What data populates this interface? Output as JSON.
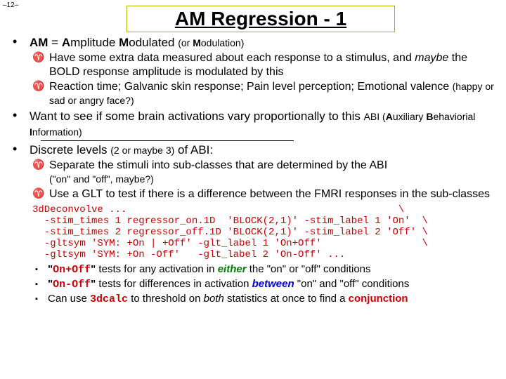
{
  "page_number": "–12–",
  "title": "AM Regression - 1",
  "b1a_pre": "AM",
  "b1a_eq": " = ",
  "b1a_A": "A",
  "b1a_mplitude": "mplitude ",
  "b1a_M": "M",
  "b1a_odulated": "odulated ",
  "b1a_or": "(or ",
  "b1a_M2": "M",
  "b1a_odulation": "odulation)",
  "b2a": "Have some extra data measured about each response to a stimulus, and ",
  "b2a_maybe": "maybe",
  "b2a_rest": " the BOLD response amplitude is modulated by this",
  "b2b": "Reaction time; Galvanic skin response; Pain level perception; Emotional valence ",
  "b2b_paren": "(happy or sad or angry face?)",
  "b1b": "Want to see if some brain activations vary proportionally to this ",
  "b1b_abi_pre": "ABI (",
  "b1b_A": "A",
  "b1b_ux": "uxiliary ",
  "b1b_B": "B",
  "b1b_eh": "ehaviorial ",
  "b1b_I": "I",
  "b1b_nfo": "nformation)",
  "b1c": "Discrete levels ",
  "b1c_paren": "(2 or maybe 3)",
  "b1c_rest": " of ABI:",
  "b2c": "Separate the stimuli into sub-classes that are determined by the ABI ",
  "b2c_paren": "(\"on\" and \"off\", maybe?)",
  "b2d": "Use a GLT to test if there is a difference between the FMRI responses in the sub-classes",
  "code": "3dDeconvolve ...                                              \\\n  -stim_times 1 regressor_on.1D  'BLOCK(2,1)' -stim_label 1 'On'  \\\n  -stim_times 2 regressor_off.1D 'BLOCK(2,1)' -stim_label 2 'Off' \\\n  -gltsym 'SYM: +On | +Off' -glt_label 1 'On+Off'                 \\\n  -gltsym 'SYM: +On -Off'   -glt_label 2 'On-Off' ...",
  "b3a_q1": "\"",
  "b3a_code1": "On+Off",
  "b3a_q2": "\"",
  "b3a_txt": " tests for any activation in ",
  "b3a_either": "either",
  "b3a_rest": " the \"on\" or \"off\" conditions",
  "b3b_q1": "\"",
  "b3b_code1": "On-Off",
  "b3b_q2": "\"",
  "b3b_txt": " tests for differences in activation ",
  "b3b_between": "between",
  "b3b_rest": " \"on\" and \"off\" conditions",
  "b3c_pre": "Can use ",
  "b3c_code": "3dcalc",
  "b3c_mid": " to threshold on ",
  "b3c_both": "both",
  "b3c_rest": " statistics at once to find a ",
  "b3c_conj": "conjunction"
}
